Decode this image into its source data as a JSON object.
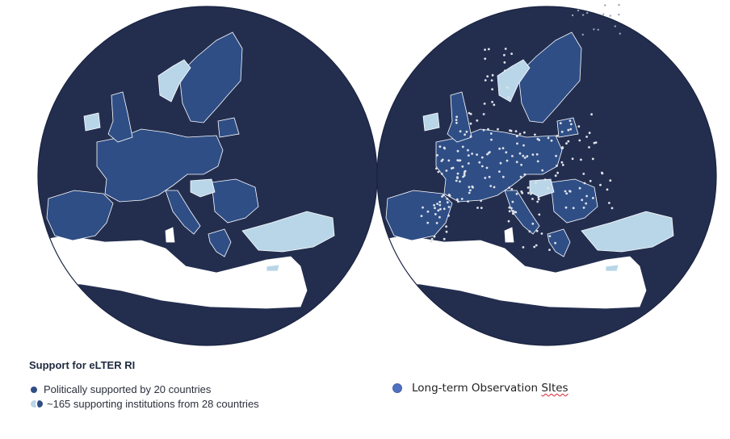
{
  "colors": {
    "ocean": "#232e4f",
    "land_other": "#ffffff",
    "supported": "#2f4e86",
    "institution": "#b9d6e8",
    "sites": "#4e71c2",
    "site_marker": "#dfe3ea",
    "borders": "#ffffff"
  },
  "legend": {
    "title": "Support for eLTER RI",
    "items": [
      {
        "icon": "dark-blue-dot-icon",
        "label": "Politically supported by 20 countries"
      },
      {
        "icon": "light-dark-dot-pair-icon",
        "label": "~165 supporting institutions from 28 countries"
      }
    ],
    "sites": {
      "icon": "medium-blue-dot-icon",
      "label_prefix": "Long-term Observation ",
      "label_flagged": "SItes"
    }
  },
  "maps": [
    {
      "name": "support-map",
      "content": "eLTER RI supporting countries and institutions"
    },
    {
      "name": "sites-map",
      "content": "Long-term Observation Sites overlay"
    }
  ]
}
